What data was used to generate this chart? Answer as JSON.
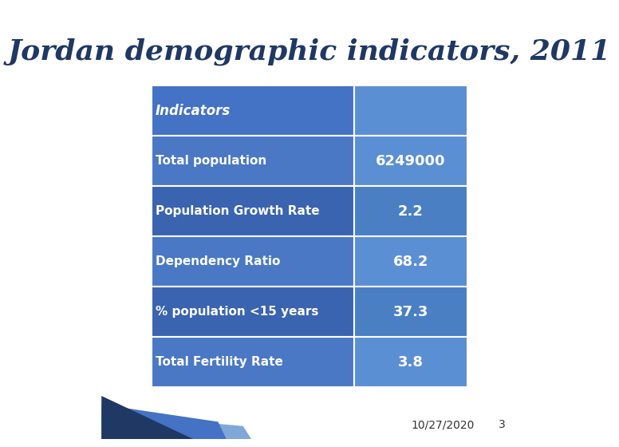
{
  "title": "Jordan demographic indicators, 2011",
  "title_color": "#1f3864",
  "title_fontsize": 26,
  "background_color": "#ffffff",
  "table_rows": [
    [
      "Indicators",
      ""
    ],
    [
      "Total population",
      "6249000"
    ],
    [
      "Population Growth Rate",
      "2.2"
    ],
    [
      "Dependency Ratio",
      "68.2"
    ],
    [
      "% population <15 years",
      "37.3"
    ],
    [
      "Total Fertility Rate",
      "3.8"
    ]
  ],
  "cell_color_left_header": "#4472c4",
  "cell_color_right_header": "#5b8fd4",
  "cell_color_left_odd": "#4a78c4",
  "cell_color_left_even": "#3a63b0",
  "cell_color_right_odd": "#5b8fd4",
  "cell_color_right_even": "#4a7fc4",
  "text_color": "#ffffff",
  "footer_text": "10/27/2020",
  "footer_color": "#333333",
  "footer_fontsize": 10,
  "page_number": "3",
  "decoration_color1": "#1f3864",
  "decoration_color2": "#4472c4",
  "decoration_color3": "#7fa8d8"
}
